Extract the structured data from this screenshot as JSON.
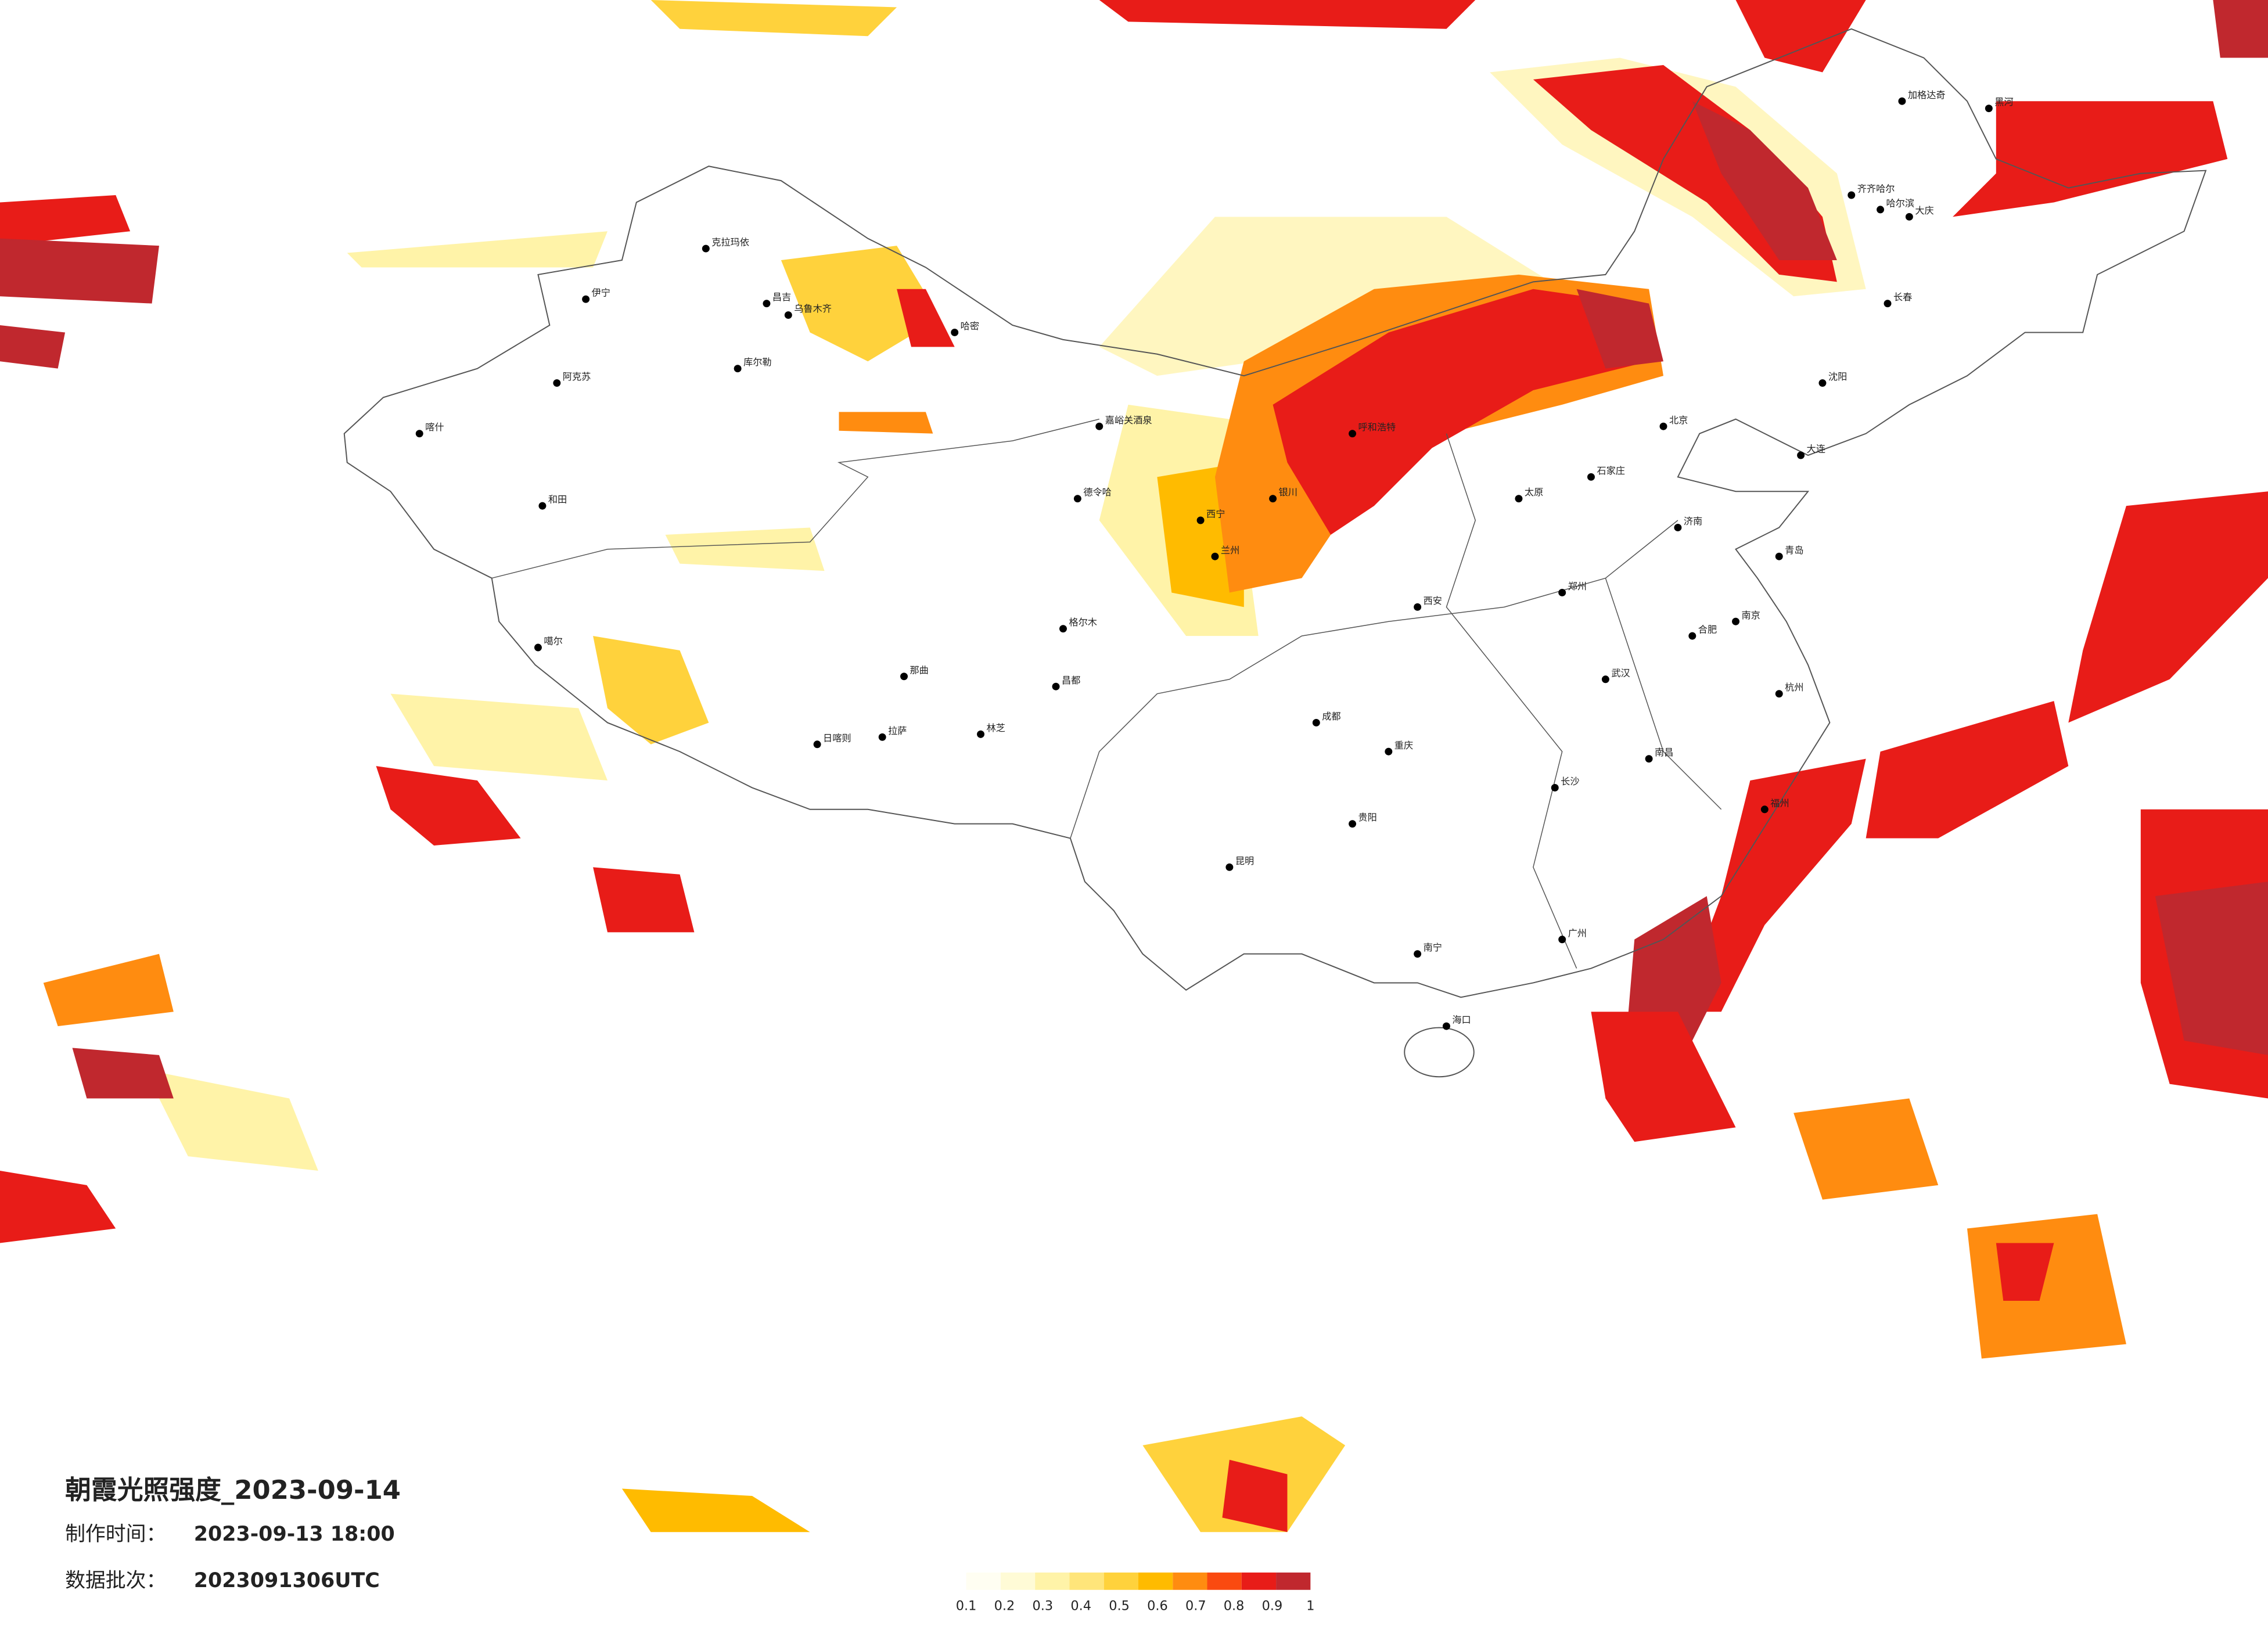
{
  "title": "朝霞光照强度_2023-09-14",
  "production_time": {
    "label": "制作时间：",
    "value": "2023-09-13 18:00"
  },
  "data_batch": {
    "label": "数据批次：",
    "value": "2023091306UTC"
  },
  "legend": [
    {
      "value": 0.1,
      "color": "#fffef2"
    },
    {
      "value": 0.2,
      "color": "#fffbd6"
    },
    {
      "value": 0.3,
      "color": "#fff3a8"
    },
    {
      "value": 0.4,
      "color": "#ffe57a"
    },
    {
      "value": 0.5,
      "color": "#ffd23c"
    },
    {
      "value": 0.6,
      "color": "#ffbb00"
    },
    {
      "value": 0.7,
      "color": "#ff8c10"
    },
    {
      "value": 0.8,
      "color": "#fa4a10"
    },
    {
      "value": 0.9,
      "color": "#e81c18"
    },
    {
      "value": 1,
      "color": "#c0282e"
    }
  ],
  "cities": [
    "伊宁",
    "克拉玛依",
    "昌吉",
    "乌鲁木齐",
    "哈密",
    "阿克苏",
    "喀什",
    "和田",
    "库尔勒",
    "嘉峪关酒泉",
    "德令哈",
    "格尔木",
    "噶尔",
    "那曲",
    "拉萨",
    "日喀则",
    "林芝",
    "昌都",
    "西宁",
    "兰州",
    "银川",
    "呼和浩特",
    "北京",
    "石家庄",
    "太原",
    "郑州",
    "西安",
    "成都",
    "重庆",
    "武汉",
    "长沙",
    "南昌",
    "合肥",
    "南京",
    "杭州",
    "福州",
    "广州",
    "南宁",
    "昆明",
    "贵阳",
    "海口",
    "哈尔滨",
    "长春",
    "沈阳",
    "齐齐哈尔",
    "大庆",
    "加格达奇",
    "黑河",
    "济南",
    "青岛",
    "大连"
  ]
}
